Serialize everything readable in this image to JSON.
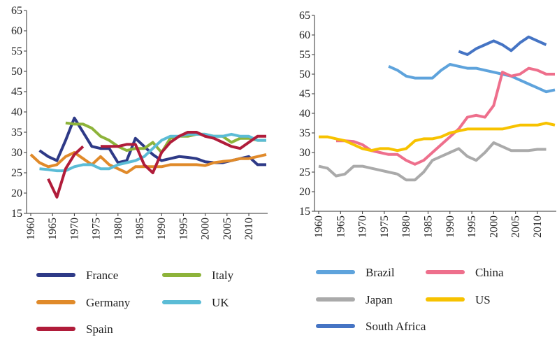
{
  "chart_data": [
    {
      "type": "line",
      "x": [
        1960,
        1962,
        1964,
        1966,
        1968,
        1970,
        1972,
        1974,
        1976,
        1978,
        1980,
        1982,
        1984,
        1986,
        1988,
        1990,
        1992,
        1994,
        1996,
        1998,
        2000,
        2002,
        2004,
        2006,
        2008,
        2010,
        2012,
        2014
      ],
      "xlim": [
        1960,
        2014
      ],
      "xticks": [
        1960,
        1965,
        1970,
        1975,
        1980,
        1985,
        1990,
        1995,
        2000,
        2005,
        2010
      ],
      "ylim": [
        15,
        65
      ],
      "yticks": [
        15,
        20,
        25,
        30,
        35,
        40,
        45,
        50,
        55,
        60,
        65
      ],
      "series": [
        {
          "name": "France",
          "color": "#2e3a87",
          "values": [
            null,
            30.5,
            29,
            28,
            33,
            38.5,
            35,
            31.5,
            31,
            31,
            27.5,
            28,
            33.5,
            31.5,
            29.5,
            28,
            28.5,
            29,
            28.8,
            28.5,
            27.7,
            27.5,
            27.5,
            28,
            28.5,
            29,
            27,
            27
          ]
        },
        {
          "name": "Italy",
          "color": "#8db33a",
          "values": [
            null,
            null,
            null,
            null,
            37.3,
            37,
            37,
            36,
            34,
            33,
            31.5,
            30.5,
            31,
            31,
            32.5,
            30,
            33.5,
            34,
            34,
            34.5,
            34.5,
            34,
            34,
            32.5,
            33.5,
            33.5,
            33,
            33
          ]
        },
        {
          "name": "Germany",
          "color": "#e08a2a",
          "values": [
            29.5,
            27.5,
            26.5,
            27,
            29,
            30,
            28.5,
            27,
            29,
            27,
            26,
            25,
            26.5,
            26.5,
            26.5,
            26.5,
            27,
            27,
            27,
            27,
            26.8,
            27.5,
            27.8,
            28,
            28.5,
            28.5,
            29,
            29.5
          ]
        },
        {
          "name": "UK",
          "color": "#5bbcd6",
          "values": [
            null,
            26,
            25.8,
            25.5,
            25.5,
            26.5,
            27,
            27,
            26,
            26,
            27,
            27.5,
            28,
            29,
            31,
            33,
            34,
            34,
            34.5,
            34.5,
            34.5,
            34,
            34,
            34.5,
            34,
            34,
            33,
            33
          ]
        },
        {
          "name": "Spain",
          "color": "#b01c3a",
          "values": [
            null,
            null,
            23.5,
            19,
            26,
            29.5,
            31.5,
            null,
            31.5,
            31.5,
            31.5,
            32,
            32,
            27,
            25,
            30,
            32.5,
            34,
            35,
            35,
            34,
            33.5,
            32.5,
            31.5,
            31,
            32.5,
            34,
            34
          ]
        }
      ]
    },
    {
      "type": "line",
      "x": [
        1960,
        1962,
        1964,
        1966,
        1968,
        1970,
        1972,
        1974,
        1976,
        1978,
        1980,
        1982,
        1984,
        1986,
        1988,
        1990,
        1992,
        1994,
        1996,
        1998,
        2000,
        2002,
        2004,
        2006,
        2008,
        2010,
        2012,
        2014
      ],
      "xlim": [
        1960,
        2014
      ],
      "xticks": [
        1960,
        1965,
        1970,
        1975,
        1980,
        1985,
        1990,
        1995,
        2000,
        2005,
        2010
      ],
      "ylim": [
        15,
        65
      ],
      "yticks": [
        15,
        20,
        25,
        30,
        35,
        40,
        45,
        50,
        55,
        60,
        65
      ],
      "series": [
        {
          "name": "Brazil",
          "color": "#5ea3dc",
          "values": [
            null,
            null,
            null,
            null,
            null,
            null,
            null,
            null,
            52,
            51,
            49.5,
            49,
            49,
            49,
            51,
            52.5,
            52,
            51.5,
            51.5,
            51,
            50.5,
            50,
            49.5,
            48.5,
            47.5,
            46.5,
            45.5,
            46
          ]
        },
        {
          "name": "China",
          "color": "#ee6f8c",
          "values": [
            null,
            null,
            33,
            33,
            32.8,
            32,
            30.5,
            30,
            29.5,
            29.5,
            28,
            27,
            28,
            30,
            32,
            34,
            36,
            39,
            39.5,
            39,
            42,
            50.5,
            49.5,
            50,
            51.5,
            51,
            50,
            50
          ]
        },
        {
          "name": "Japan",
          "color": "#aaaaaa",
          "values": [
            26.5,
            26,
            24,
            24.5,
            26.5,
            26.5,
            26,
            25.5,
            25,
            24.5,
            23,
            23,
            25,
            28,
            29,
            30,
            31,
            29,
            28,
            30,
            32.5,
            31.5,
            30.5,
            30.5,
            30.5,
            30.8,
            30.8,
            null
          ]
        },
        {
          "name": "US",
          "color": "#f7c200",
          "values": [
            34,
            34,
            33.5,
            33,
            32,
            31,
            30.5,
            31,
            31,
            30.5,
            31,
            33,
            33.5,
            33.5,
            34,
            35,
            35.5,
            36,
            36,
            36,
            36,
            36,
            36.5,
            37,
            37,
            37,
            37.5,
            37
          ]
        },
        {
          "name": "South Africa",
          "color": "#4574c4",
          "values": [
            null,
            null,
            null,
            null,
            null,
            null,
            null,
            null,
            null,
            null,
            null,
            null,
            null,
            null,
            null,
            null,
            55.8,
            55,
            56.5,
            57.5,
            58.5,
            57.5,
            56,
            58,
            59.5,
            58.5,
            57.5,
            null
          ]
        }
      ]
    }
  ]
}
